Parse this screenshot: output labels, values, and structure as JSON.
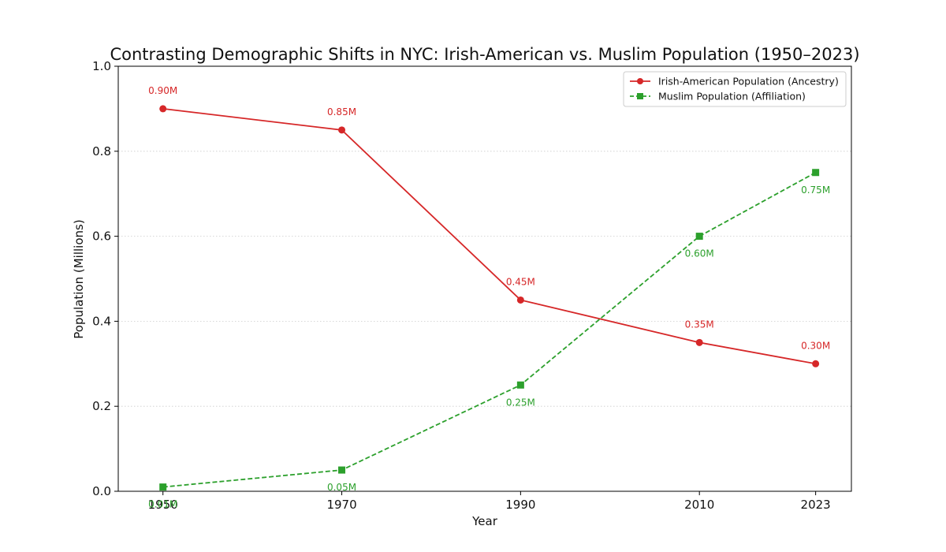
{
  "chart_data": {
    "type": "line",
    "title": "Contrasting Demographic Shifts in NYC: Irish-American vs. Muslim Population (1950–2023)",
    "xlabel": "Year",
    "ylabel": "Population (Millions)",
    "x": [
      1950,
      1970,
      1990,
      2010,
      2023
    ],
    "x_tick_labels": [
      "1950",
      "1970",
      "1990",
      "2010",
      "2023"
    ],
    "ylim": [
      0,
      1.0
    ],
    "y_ticks": [
      0,
      0.2,
      0.4,
      0.6,
      0.8,
      1.0
    ],
    "y_tick_labels": [
      "0.0",
      "0.2",
      "0.4",
      "0.6",
      "0.8",
      "1.0"
    ],
    "grid": "horizontal-dotted",
    "legend_position": "top-right",
    "series": [
      {
        "name": "Irish-American Population (Ancestry)",
        "values": [
          0.9,
          0.85,
          0.45,
          0.35,
          0.3
        ],
        "labels": [
          "0.90M",
          "0.85M",
          "0.45M",
          "0.35M",
          "0.30M"
        ],
        "color": "#d62728",
        "line_style": "solid",
        "marker": "circle"
      },
      {
        "name": "Muslim Population (Affiliation)",
        "values": [
          0.01,
          0.05,
          0.25,
          0.6,
          0.75
        ],
        "labels": [
          "0.01M",
          "0.05M",
          "0.25M",
          "0.60M",
          "0.75M"
        ],
        "color": "#2ca02c",
        "line_style": "dashed",
        "marker": "square"
      }
    ]
  }
}
